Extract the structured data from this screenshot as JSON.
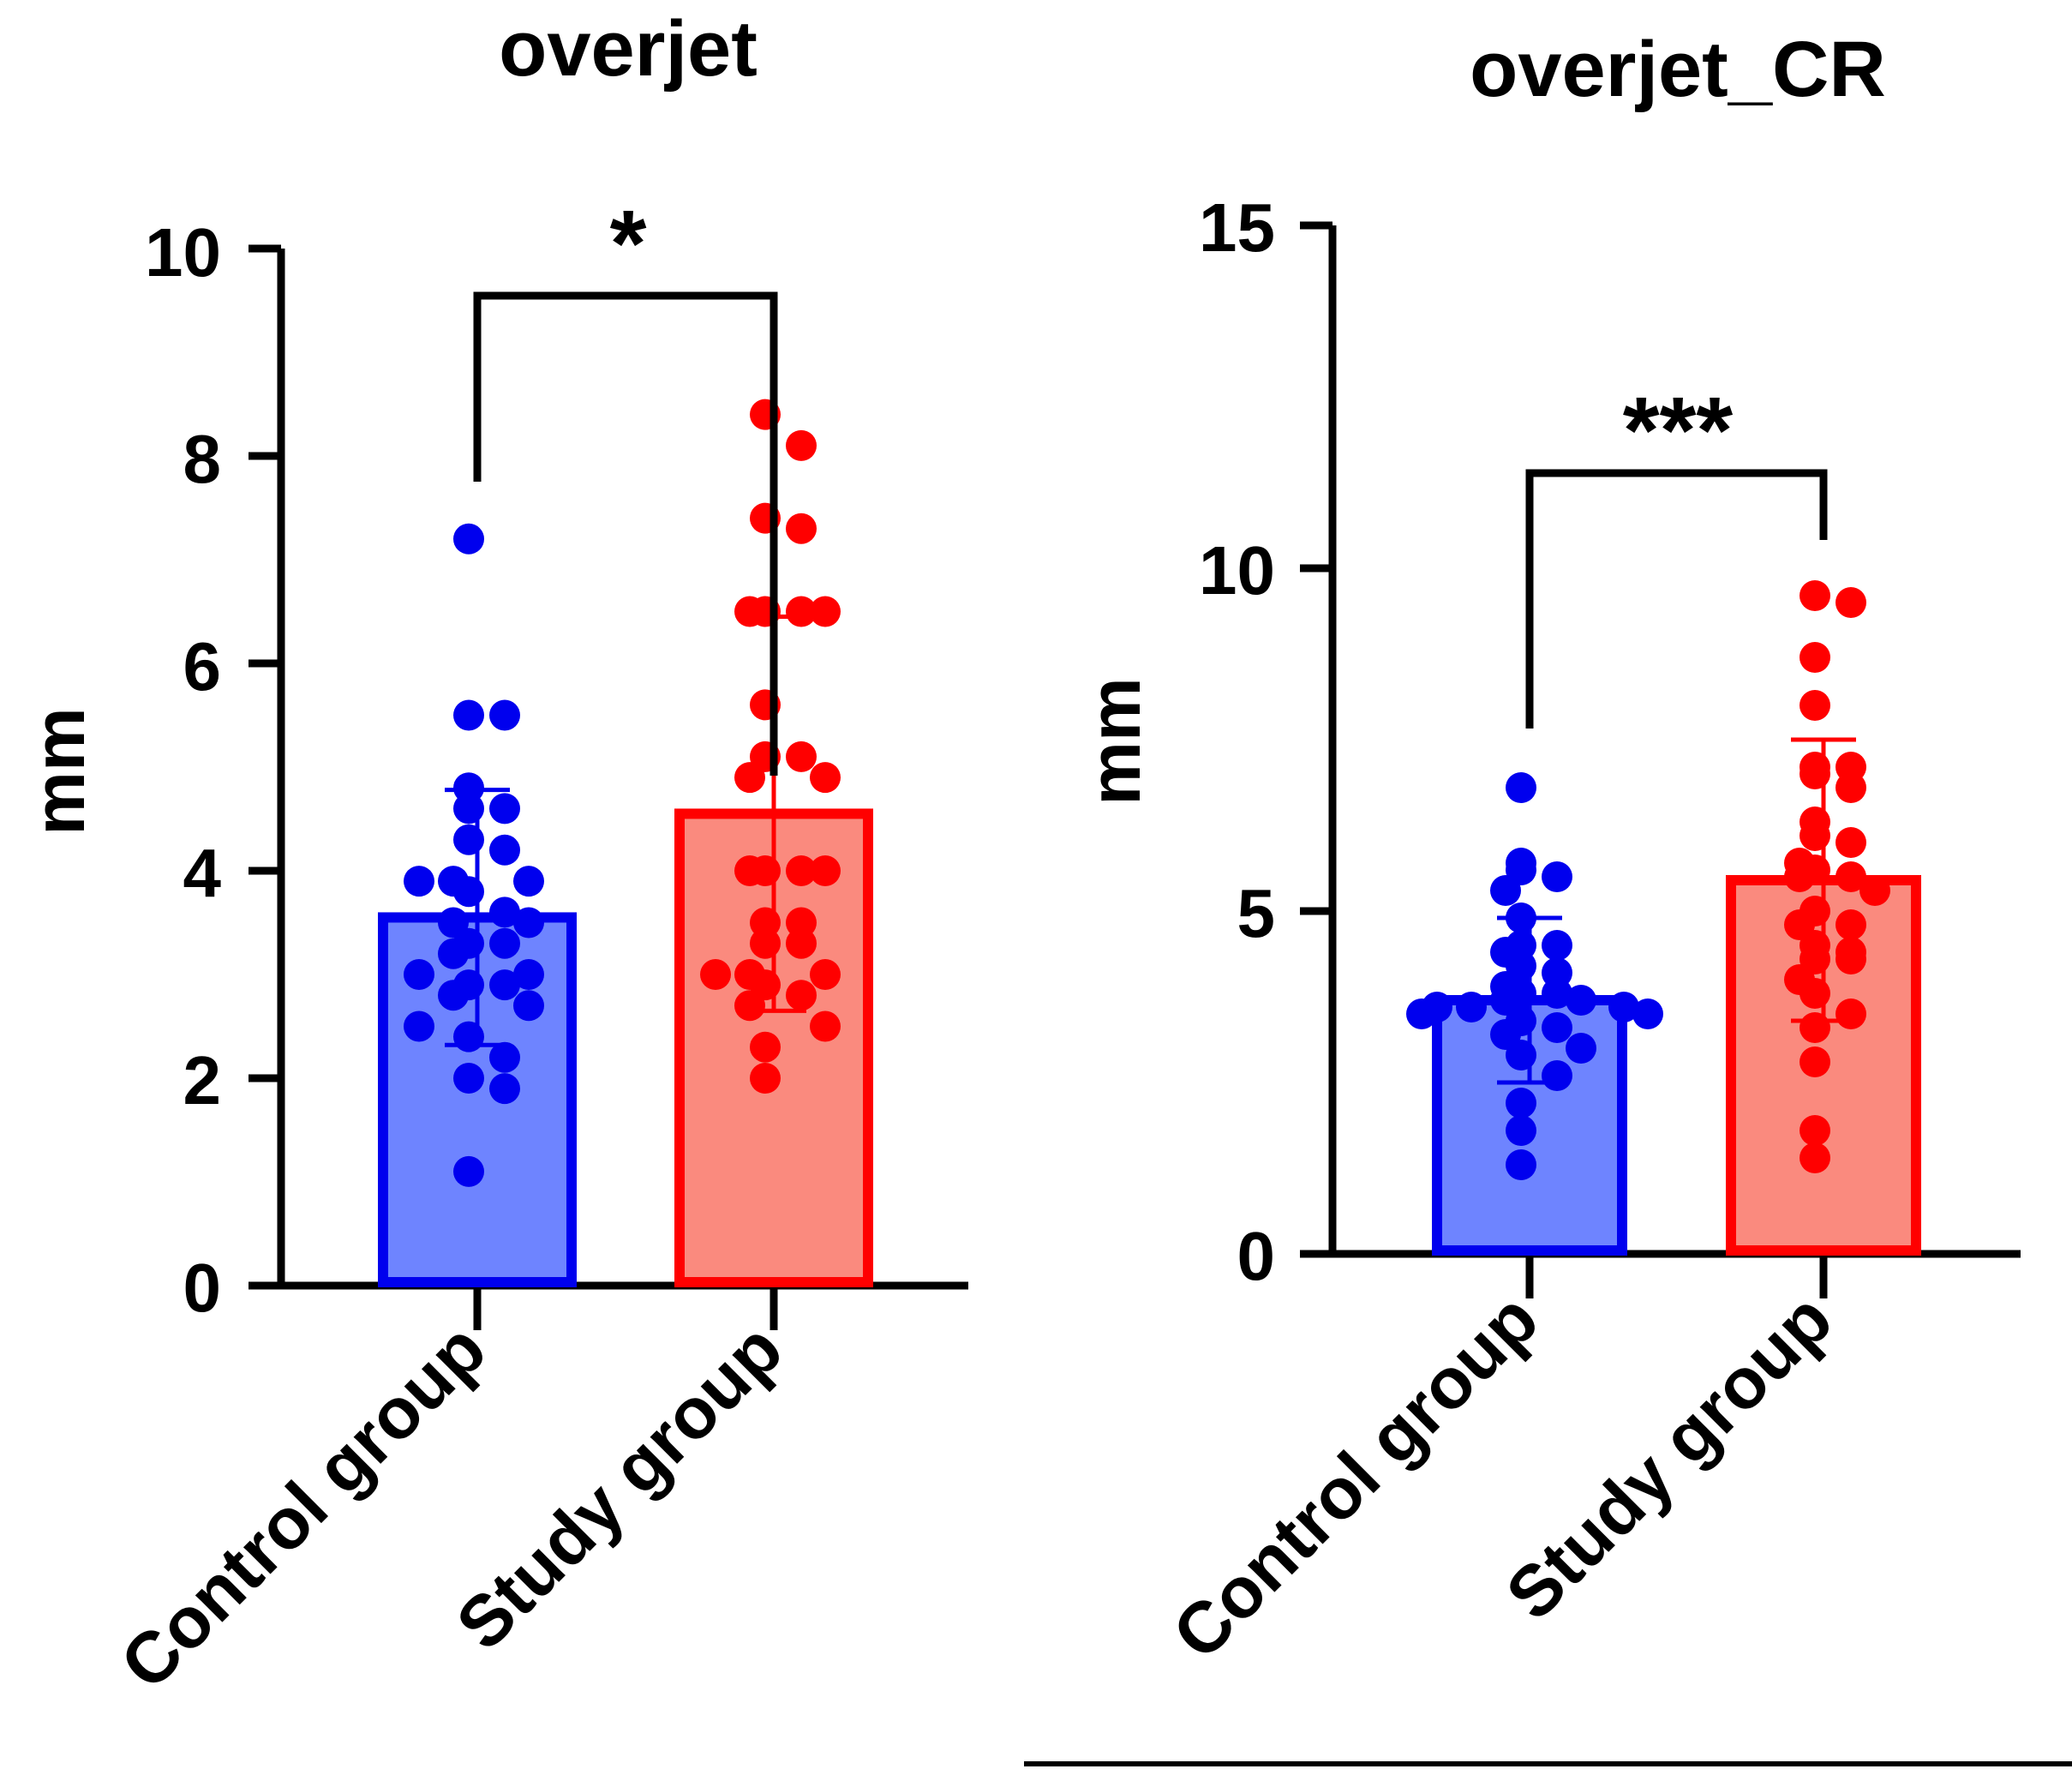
{
  "chart_data": [
    {
      "type": "bar",
      "title": "overjet",
      "ylabel": "mm",
      "xlabel": "",
      "ylim": [
        0,
        10
      ],
      "yticks": [
        "0",
        "2",
        "4",
        "6",
        "8",
        "10"
      ],
      "categories": [
        "Control group",
        "Study group"
      ],
      "values": [
        3.55,
        4.55
      ],
      "sd": [
        1.23,
        1.9
      ],
      "significance": "*",
      "colors": {
        "Control group": {
          "fill": "#6e84ff",
          "edge": "#0000ee"
        },
        "Study group": {
          "fill": "#fa8a7e",
          "edge": "#ff0000"
        }
      },
      "points": {
        "Control group": [
          7.2,
          5.5,
          5.5,
          4.8,
          4.6,
          4.6,
          4.3,
          4.2,
          3.9,
          3.9,
          3.9,
          3.8,
          3.6,
          3.5,
          3.5,
          3.3,
          3.3,
          3.2,
          3.0,
          3.0,
          2.9,
          2.9,
          2.8,
          2.7,
          2.5,
          2.4,
          2.2,
          2.0,
          1.9,
          1.1
        ],
        "Study group": [
          8.4,
          8.1,
          7.4,
          7.3,
          6.5,
          6.5,
          6.5,
          6.5,
          5.6,
          5.1,
          5.1,
          4.9,
          4.9,
          4.0,
          4.0,
          4.0,
          4.0,
          3.5,
          3.5,
          3.3,
          3.3,
          3.0,
          3.0,
          3.0,
          2.9,
          2.8,
          2.7,
          2.5,
          2.3,
          2.0
        ]
      }
    },
    {
      "type": "bar",
      "title": "overjet_CR",
      "ylabel": "mm",
      "xlabel": "",
      "ylim": [
        0,
        15
      ],
      "yticks": [
        "0",
        "5",
        "10",
        "15"
      ],
      "categories": [
        "Control group",
        "Study group"
      ],
      "values": [
        3.7,
        5.45
      ],
      "sd": [
        1.2,
        2.05
      ],
      "significance": "***",
      "colors": {
        "Control group": {
          "fill": "#6e84ff",
          "edge": "#0000ee"
        },
        "Study group": {
          "fill": "#fa8a7e",
          "edge": "#ff0000"
        }
      },
      "points": {
        "Control group": [
          6.8,
          5.7,
          5.6,
          5.5,
          5.3,
          4.9,
          4.5,
          4.5,
          4.4,
          4.2,
          4.1,
          3.9,
          3.8,
          3.8,
          3.7,
          3.7,
          3.6,
          3.6,
          3.6,
          3.5,
          3.5,
          3.4,
          3.3,
          3.2,
          3.0,
          2.9,
          2.6,
          2.2,
          1.8,
          1.3
        ],
        "Study group": [
          9.6,
          9.5,
          8.7,
          8.0,
          7.1,
          7.1,
          7.0,
          6.8,
          6.3,
          6.1,
          6.0,
          5.7,
          5.6,
          5.5,
          5.5,
          5.3,
          5.0,
          4.8,
          4.8,
          4.5,
          4.4,
          4.3,
          4.3,
          4.0,
          3.8,
          3.5,
          3.3,
          2.8,
          1.8,
          1.4
        ]
      }
    }
  ]
}
